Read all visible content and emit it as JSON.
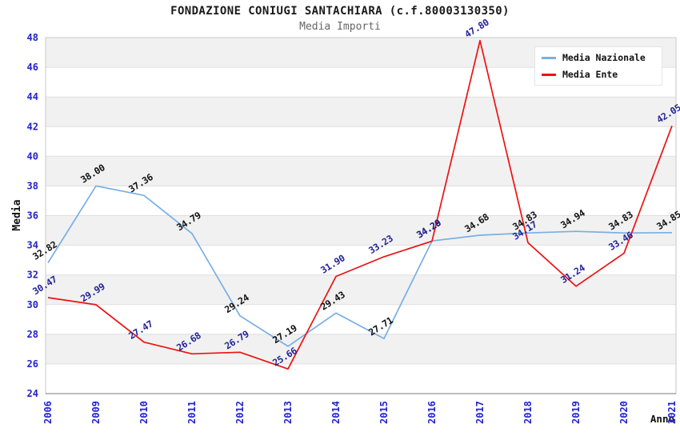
{
  "chart_data": {
    "type": "line",
    "title": "FONDAZIONE CONIUGI SANTACHIARA (c.f.80003130350)",
    "subtitle": "Media Importi",
    "xlabel": "Anno",
    "ylabel": "Media",
    "ylim": [
      24,
      48
    ],
    "ytick_step": 2,
    "grid": true,
    "legend_position": "top-right",
    "categories": [
      "2006",
      "2009",
      "2010",
      "2011",
      "2012",
      "2013",
      "2014",
      "2015",
      "2016",
      "2017",
      "2018",
      "2019",
      "2020",
      "2021"
    ],
    "series": [
      {
        "name": "Media Nazionale",
        "color": "#79AEE4",
        "label_color": "#111111",
        "values": [
          32.82,
          38.0,
          37.36,
          34.79,
          29.24,
          27.19,
          29.43,
          27.71,
          34.29,
          34.68,
          34.83,
          34.94,
          34.83,
          34.85
        ]
      },
      {
        "name": "Media Ente",
        "color": "#EE1111",
        "label_color": "#232399",
        "values": [
          30.47,
          29.99,
          27.47,
          26.68,
          26.79,
          25.66,
          31.9,
          33.23,
          34.28,
          47.8,
          34.17,
          31.24,
          33.46,
          42.05
        ]
      }
    ],
    "colors": {
      "tick_label": "#2222CC",
      "band": "#F1F1F1",
      "grid": "#DFDFDF",
      "border": "#C9C9C9",
      "axis_line": "#777777",
      "background": "#FFFFFF"
    }
  }
}
